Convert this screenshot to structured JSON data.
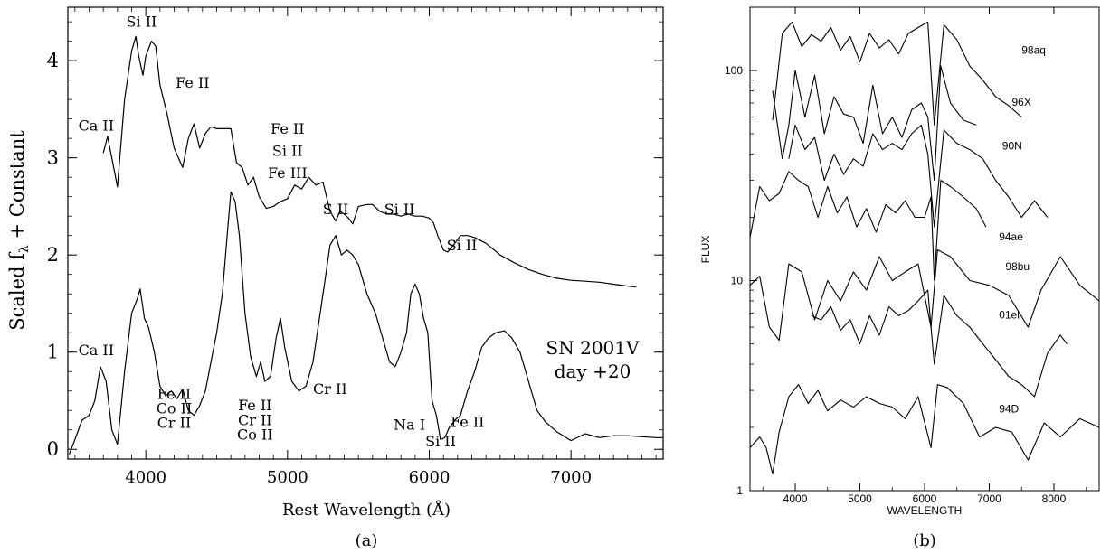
{
  "panel_a": {
    "caption": "(a)",
    "xlabel": "Rest Wavelength (Å)",
    "ylabel_main": "Scaled f",
    "ylabel_sub": "λ",
    "ylabel_tail": " + Constant",
    "legend_line1": "SN 2001V",
    "legend_line2": "day +20",
    "xticks": [
      "4000",
      "5000",
      "6000",
      "7000"
    ],
    "yticks": [
      "0",
      "1",
      "2",
      "3",
      "4"
    ],
    "labels": [
      {
        "text": "Si II",
        "x": 3970,
        "y": 4.35
      },
      {
        "text": "Ca II",
        "x": 3650,
        "y": 3.28
      },
      {
        "text": "Fe II",
        "x": 4330,
        "y": 3.72
      },
      {
        "text": "Fe II",
        "x": 5000,
        "y": 3.25
      },
      {
        "text": "Si II",
        "x": 5000,
        "y": 3.02
      },
      {
        "text": "Fe III",
        "x": 5000,
        "y": 2.79
      },
      {
        "text": "S II",
        "x": 5340,
        "y": 2.42
      },
      {
        "text": "Si II",
        "x": 5790,
        "y": 2.42
      },
      {
        "text": "Si II",
        "x": 6230,
        "y": 2.05
      },
      {
        "text": "Ca II",
        "x": 3650,
        "y": 0.97
      },
      {
        "text": "Fe II",
        "x": 4200,
        "y": 0.52
      },
      {
        "text": "Co II",
        "x": 4200,
        "y": 0.37
      },
      {
        "text": "Cr II",
        "x": 4200,
        "y": 0.22
      },
      {
        "text": "Fe II",
        "x": 4770,
        "y": 0.4
      },
      {
        "text": "Cr II",
        "x": 4770,
        "y": 0.25
      },
      {
        "text": "Co II",
        "x": 4770,
        "y": 0.1
      },
      {
        "text": "Cr II",
        "x": 5300,
        "y": 0.57
      },
      {
        "text": "Na I",
        "x": 5860,
        "y": 0.2
      },
      {
        "text": "Si II",
        "x": 6080,
        "y": 0.03
      },
      {
        "text": "Fe II",
        "x": 6270,
        "y": 0.23
      }
    ]
  },
  "panel_b": {
    "caption": "(b)",
    "xlabel": "WAVELENGTH",
    "ylabel": "FLUX",
    "xticks": [
      "4000",
      "5000",
      "6000",
      "7000",
      "8000"
    ],
    "yticks": [
      "1",
      "10",
      "100"
    ],
    "series_labels": [
      "98aq",
      "96X",
      "90N",
      "94ae",
      "98bu",
      "01el",
      "94D"
    ]
  },
  "chart_data": [
    {
      "type": "line",
      "xlabel": "Rest Wavelength (Å)",
      "ylabel": "Scaled fλ + Constant",
      "xlim": [
        3450,
        7650
      ],
      "ylim": [
        -0.1,
        4.55
      ],
      "grid": false,
      "annotation": "SN 2001V day +20",
      "series": [
        {
          "x": [
            3700,
            3730,
            3760,
            3800,
            3850,
            3900,
            3930,
            3950,
            3980,
            4000,
            4040,
            4070,
            4100,
            4150,
            4200,
            4260,
            4300,
            4340,
            4380,
            4420,
            4460,
            4500,
            4550,
            4600,
            4640,
            4680,
            4720,
            4760,
            4800,
            4850,
            4900,
            4950,
            5000,
            5050,
            5100,
            5150,
            5200,
            5250,
            5300,
            5340,
            5370,
            5400,
            5430,
            5460,
            5500,
            5560,
            5600,
            5650,
            5700,
            5750,
            5800,
            5850,
            5900,
            5950,
            6000,
            6030,
            6060,
            6100,
            6130,
            6170,
            6220,
            6270,
            6320,
            6400,
            6500,
            6600,
            6700,
            6800,
            6900,
            7000,
            7100,
            7200,
            7300,
            7400,
            7460
          ],
          "values": [
            3.05,
            3.22,
            3.0,
            2.7,
            3.6,
            4.1,
            4.25,
            4.05,
            3.85,
            4.05,
            4.2,
            4.15,
            3.75,
            3.45,
            3.1,
            2.9,
            3.2,
            3.35,
            3.1,
            3.25,
            3.32,
            3.3,
            3.3,
            3.3,
            2.95,
            2.9,
            2.72,
            2.8,
            2.6,
            2.48,
            2.5,
            2.55,
            2.58,
            2.72,
            2.68,
            2.8,
            2.72,
            2.75,
            2.45,
            2.35,
            2.45,
            2.42,
            2.38,
            2.32,
            2.5,
            2.52,
            2.52,
            2.45,
            2.42,
            2.42,
            2.4,
            2.42,
            2.4,
            2.4,
            2.38,
            2.33,
            2.2,
            2.05,
            2.03,
            2.1,
            2.2,
            2.2,
            2.18,
            2.12,
            2.0,
            1.92,
            1.85,
            1.8,
            1.76,
            1.74,
            1.73,
            1.72,
            1.7,
            1.68,
            1.67
          ]
        },
        {
          "x": [
            3460,
            3500,
            3550,
            3600,
            3640,
            3680,
            3720,
            3760,
            3800,
            3850,
            3900,
            3940,
            3960,
            3990,
            4020,
            4060,
            4100,
            4140,
            4180,
            4220,
            4260,
            4300,
            4340,
            4380,
            4420,
            4460,
            4500,
            4540,
            4580,
            4600,
            4630,
            4660,
            4700,
            4740,
            4780,
            4810,
            4840,
            4880,
            4920,
            4950,
            4980,
            5030,
            5080,
            5130,
            5180,
            5220,
            5260,
            5300,
            5340,
            5380,
            5420,
            5460,
            5500,
            5560,
            5620,
            5680,
            5720,
            5760,
            5800,
            5840,
            5870,
            5900,
            5930,
            5960,
            5990,
            6020,
            6050,
            6080,
            6110,
            6140,
            6180,
            6220,
            6270,
            6320,
            6370,
            6420,
            6470,
            6530,
            6580,
            6640,
            6700,
            6760,
            6820,
            6900,
            7000,
            7100,
            7200,
            7300,
            7400,
            7500,
            7600,
            7650
          ],
          "values": [
            -0.05,
            0.1,
            0.3,
            0.35,
            0.5,
            0.85,
            0.7,
            0.2,
            0.05,
            0.8,
            1.4,
            1.55,
            1.65,
            1.35,
            1.25,
            1.0,
            0.65,
            0.55,
            0.6,
            0.52,
            0.62,
            0.4,
            0.35,
            0.45,
            0.6,
            0.9,
            1.2,
            1.6,
            2.3,
            2.65,
            2.55,
            2.2,
            1.4,
            0.95,
            0.75,
            0.9,
            0.7,
            0.75,
            1.15,
            1.35,
            1.05,
            0.7,
            0.6,
            0.65,
            0.9,
            1.3,
            1.7,
            2.1,
            2.2,
            2.0,
            2.05,
            2.0,
            1.9,
            1.6,
            1.4,
            1.1,
            0.9,
            0.85,
            1.0,
            1.2,
            1.6,
            1.7,
            1.6,
            1.35,
            1.2,
            0.5,
            0.35,
            0.1,
            0.12,
            0.22,
            0.3,
            0.35,
            0.6,
            0.8,
            1.05,
            1.15,
            1.2,
            1.22,
            1.15,
            1.0,
            0.7,
            0.4,
            0.28,
            0.18,
            0.09,
            0.16,
            0.12,
            0.14,
            0.14,
            0.13,
            0.12,
            0.12
          ]
        }
      ]
    },
    {
      "type": "line",
      "xlabel": "WAVELENGTH",
      "ylabel": "FLUX",
      "log_y": true,
      "xlim": [
        3300,
        8700
      ],
      "ylim": [
        1,
        200
      ],
      "grid": false,
      "series": [
        {
          "name": "98aq",
          "x": [
            3650,
            3800,
            3950,
            4100,
            4250,
            4400,
            4550,
            4700,
            4850,
            5000,
            5150,
            5300,
            5450,
            5600,
            5750,
            5900,
            6050,
            6150,
            6300,
            6500,
            6700,
            6900,
            7100,
            7300,
            7500
          ],
          "values": [
            58,
            150,
            170,
            130,
            148,
            138,
            160,
            125,
            145,
            110,
            150,
            128,
            140,
            120,
            150,
            160,
            170,
            55,
            165,
            140,
            105,
            90,
            75,
            68,
            60
          ]
        },
        {
          "name": "96X",
          "x": [
            3650,
            3800,
            3900,
            4000,
            4150,
            4300,
            4450,
            4600,
            4750,
            4900,
            5050,
            5200,
            5350,
            5500,
            5650,
            5800,
            5950,
            6050,
            6150,
            6250,
            6400,
            6600,
            6800
          ],
          "values": [
            80,
            38,
            55,
            100,
            60,
            95,
            50,
            75,
            62,
            60,
            45,
            85,
            50,
            60,
            48,
            65,
            70,
            60,
            30,
            105,
            70,
            58,
            55
          ]
        },
        {
          "name": "90N",
          "x": [
            3900,
            4000,
            4150,
            4300,
            4450,
            4600,
            4750,
            4900,
            5050,
            5200,
            5350,
            5500,
            5650,
            5800,
            5950,
            6050,
            6150,
            6300,
            6500,
            6700,
            6900,
            7100,
            7300,
            7500,
            7700,
            7900
          ],
          "values": [
            38,
            55,
            42,
            48,
            30,
            40,
            32,
            38,
            35,
            50,
            42,
            45,
            42,
            50,
            55,
            40,
            18,
            52,
            45,
            42,
            38,
            30,
            25,
            20,
            24,
            20
          ]
        },
        {
          "name": "94ae",
          "x": [
            3300,
            3450,
            3600,
            3750,
            3900,
            4050,
            4200,
            4350,
            4500,
            4650,
            4800,
            4950,
            5100,
            5250,
            5400,
            5550,
            5700,
            5850,
            6000,
            6100,
            6150,
            6250,
            6400,
            6600,
            6800,
            6950
          ],
          "values": [
            16,
            28,
            24,
            26,
            33,
            30,
            28,
            20,
            28,
            21,
            25,
            18,
            22,
            17,
            23,
            21,
            24,
            20,
            20,
            25,
            10,
            30,
            28,
            25,
            22,
            18
          ]
        },
        {
          "name": "98bu",
          "x": [
            3300,
            3450,
            3600,
            3750,
            3900,
            4100,
            4300,
            4500,
            4700,
            4900,
            5100,
            5300,
            5500,
            5700,
            5900,
            6100,
            6200,
            6400,
            6700,
            7000,
            7300,
            7600,
            7800,
            8100,
            8400,
            8700
          ],
          "values": [
            9.5,
            10.5,
            6,
            5.2,
            12,
            11,
            6.5,
            10,
            8,
            11,
            9,
            13,
            10,
            11,
            12,
            6,
            14,
            13,
            10,
            9.5,
            8.5,
            6,
            9,
            13,
            9.5,
            8
          ]
        },
        {
          "name": "01el",
          "x": [
            4250,
            4400,
            4550,
            4700,
            4850,
            5000,
            5150,
            5300,
            5450,
            5600,
            5750,
            5900,
            6050,
            6150,
            6300,
            6500,
            6700,
            6900,
            7100,
            7300,
            7500,
            7700,
            7900,
            8100,
            8200
          ],
          "values": [
            6.8,
            6.5,
            7.5,
            5.8,
            6.5,
            5,
            6.8,
            5.5,
            7.5,
            6.8,
            7.2,
            8,
            9,
            4,
            8.5,
            6.8,
            6,
            5,
            4.2,
            3.5,
            3.2,
            2.8,
            4.5,
            5.5,
            5
          ]
        },
        {
          "name": "94D",
          "x": [
            3300,
            3450,
            3550,
            3650,
            3750,
            3900,
            4050,
            4200,
            4350,
            4500,
            4700,
            4900,
            5100,
            5300,
            5500,
            5700,
            5900,
            6100,
            6200,
            6350,
            6600,
            6850,
            7100,
            7350,
            7600,
            7850,
            8100,
            8400,
            8700
          ],
          "values": [
            1.6,
            1.8,
            1.6,
            1.2,
            1.9,
            2.8,
            3.2,
            2.6,
            3,
            2.4,
            2.7,
            2.5,
            2.8,
            2.6,
            2.5,
            2.2,
            2.8,
            1.6,
            3.2,
            3.1,
            2.6,
            1.8,
            2,
            1.9,
            1.4,
            2.1,
            1.8,
            2.2,
            2
          ]
        }
      ]
    }
  ]
}
